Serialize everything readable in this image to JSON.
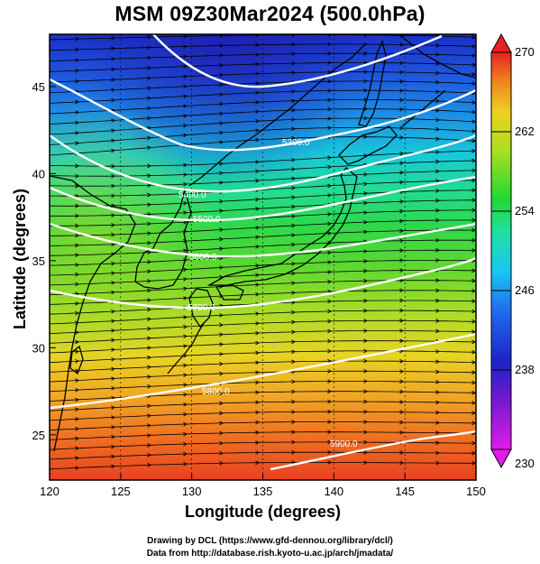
{
  "title": "MSM 09Z30Mar2024 (500.0hPa)",
  "map": {
    "xlabel": "Longitude (degrees)",
    "ylabel": "Latitude  (degrees)",
    "lon_range": [
      120,
      150
    ],
    "lat_range": [
      22.4,
      48
    ],
    "x_ticks": [
      "120",
      "125",
      "130",
      "135",
      "140",
      "145",
      "150"
    ],
    "y_ticks": [
      "25",
      "30",
      "35",
      "40",
      "45"
    ],
    "field": "temperature (K)",
    "overlay": "streamlines with arrows, black",
    "contour_color": "#ffffff",
    "contours": [
      {
        "label": "5300.0",
        "value": 5300
      },
      {
        "label": "5400.0",
        "value": 5400
      },
      {
        "label": "5500.0",
        "value": 5500
      },
      {
        "label": "5600.0",
        "value": 5600
      },
      {
        "label": "5700.0",
        "value": 5700
      },
      {
        "label": "5800.0",
        "value": 5800
      },
      {
        "label": "5900.0",
        "value": 5900
      }
    ]
  },
  "colorbar": {
    "min_label": "230",
    "max_label": "270",
    "tick_labels": [
      "262",
      "254",
      "246",
      "238"
    ],
    "colors": [
      "#e01ce8",
      "#1c22c8",
      "#1e6ef0",
      "#18c8f0",
      "#20e0a0",
      "#20d830",
      "#a8e020",
      "#f0d020",
      "#f08020",
      "#e82020"
    ]
  },
  "credits": {
    "line1": "Drawing by DCL (https://www.gfd-dennou.org/library/dcl/)",
    "line2": "Data from http://database.rish.kyoto-u.ac.jp/arch/jmadata/"
  }
}
